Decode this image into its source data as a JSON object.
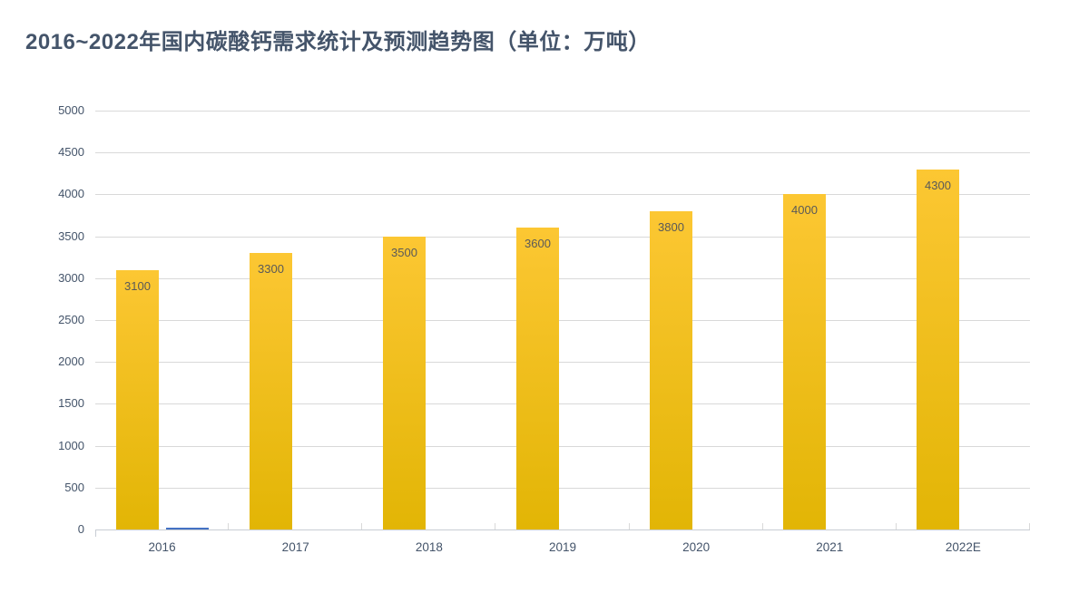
{
  "title": "2016~2022年国内碳酸钙需求统计及预测趋势图（单位：万吨）",
  "colors": {
    "background": "#FFFFFF",
    "title": "#44546A",
    "axis_label": "#44546A",
    "bar_label": "#595959",
    "gridline": "#D9D9D9",
    "axis_line": "#C8CDD4",
    "bar_gradient_top": "#FCC733",
    "bar_gradient_bottom": "#E2B505",
    "series2": "#4472C4"
  },
  "chart_data": {
    "type": "bar",
    "title": "2016~2022年国内碳酸钙需求统计及预测趋势图（单位：万吨）",
    "categories": [
      "2016",
      "2017",
      "2018",
      "2019",
      "2020",
      "2021",
      "2022E"
    ],
    "series": [
      {
        "name": "碳酸钙需求",
        "values": [
          3100,
          3300,
          3500,
          3600,
          3800,
          4000,
          4300
        ],
        "data_labels": [
          "3100",
          "3300",
          "3500",
          "3600",
          "3800",
          "4000",
          "4300"
        ],
        "label_position": "inside-top"
      },
      {
        "name": "series-2",
        "values": [
          15,
          0,
          0,
          0,
          0,
          0,
          0
        ]
      }
    ],
    "xlabel": "",
    "ylabel": "",
    "ylim": [
      0,
      5000
    ],
    "ytick_step": 500,
    "yticks": [
      0,
      500,
      1000,
      1500,
      2000,
      2500,
      3000,
      3500,
      4000,
      4500,
      5000
    ],
    "grid": true,
    "legend_position": "none"
  }
}
